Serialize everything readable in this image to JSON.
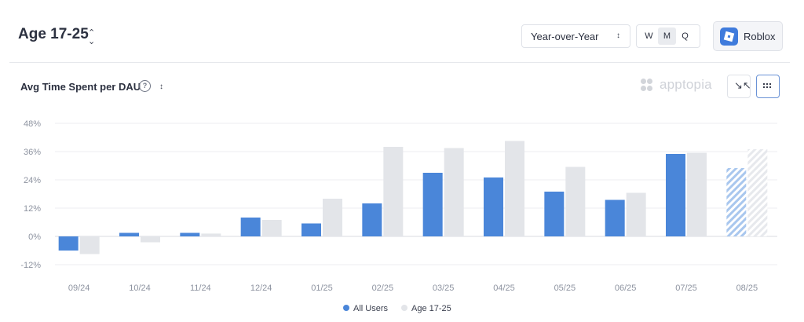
{
  "header": {
    "segment_title": "Age 17-25",
    "period_select": "Year-over-Year",
    "granularity": {
      "options": [
        "W",
        "M",
        "Q"
      ],
      "selected": "M"
    },
    "app_name": "Roblox"
  },
  "metric": {
    "title": "Avg Time Spent per DAU",
    "help": "?",
    "brand": "apptopia"
  },
  "colors": {
    "all_users": "#4a86d9",
    "age_17_25": "#e3e5e9",
    "projected_all_users": "#a9c7ee",
    "projected_age": "#e7e9ed"
  },
  "chart_data": {
    "type": "bar",
    "categories": [
      "09/24",
      "10/24",
      "11/24",
      "12/24",
      "01/25",
      "02/25",
      "03/25",
      "04/25",
      "05/25",
      "06/25",
      "07/25",
      "08/25"
    ],
    "series": [
      {
        "name": "All Users",
        "values": [
          -6,
          1.5,
          1.5,
          8,
          5.5,
          14,
          27,
          25,
          19,
          15.5,
          35,
          29
        ]
      },
      {
        "name": "Age 17-25",
        "values": [
          -7.5,
          -2.5,
          1.2,
          7,
          16,
          38,
          37.5,
          40.5,
          29.5,
          18.5,
          35.5,
          37
        ]
      }
    ],
    "projected_categories": [
      "08/25"
    ],
    "y_ticks": [
      "48%",
      "36%",
      "24%",
      "12%",
      "0%",
      "-12%"
    ],
    "ylim": [
      -12,
      48
    ],
    "grid": true,
    "legend_position": "bottom-center"
  }
}
